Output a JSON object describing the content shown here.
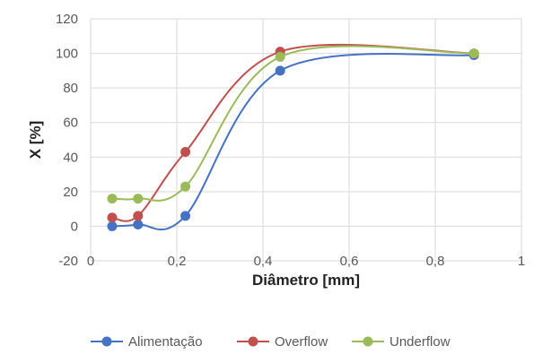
{
  "chart_data": {
    "type": "line",
    "xlabel": "Diâmetro [mm]",
    "ylabel": "X [%]",
    "xlim": [
      0,
      1
    ],
    "ylim": [
      -20,
      120
    ],
    "x_ticks": [
      "0",
      "0,2",
      "0,4",
      "0,6",
      "0,8",
      "1"
    ],
    "y_ticks": [
      "-20",
      "0",
      "20",
      "40",
      "60",
      "80",
      "100",
      "120"
    ],
    "grid": true,
    "legend_position": "bottom",
    "smooth": true,
    "x": [
      0.05,
      0.11,
      0.22,
      0.44,
      0.89
    ],
    "series": [
      {
        "name": "Alimentação",
        "color": "#4472C4",
        "values": [
          0,
          1,
          6,
          90,
          99
        ]
      },
      {
        "name": "Overflow",
        "color": "#C0504D",
        "values": [
          5,
          6,
          43,
          101,
          100
        ]
      },
      {
        "name": "Underflow",
        "color": "#9BBB59",
        "values": [
          16,
          16,
          23,
          98,
          100
        ]
      }
    ]
  }
}
